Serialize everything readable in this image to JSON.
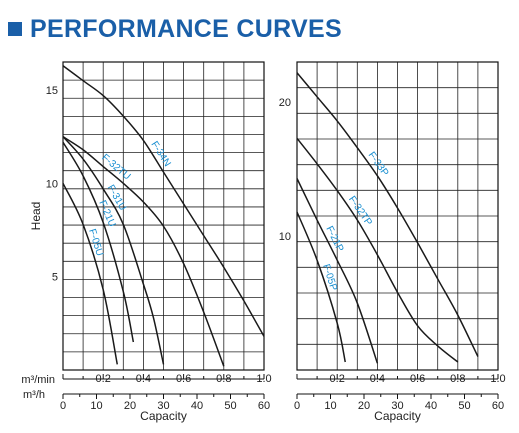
{
  "header": {
    "title": "PERFORMANCE CURVES",
    "accent_color": "#1a5fa8"
  },
  "chart_data": [
    {
      "type": "line",
      "ylabel": "Head",
      "xlabel": "Capacity",
      "x_axis_m3min_label": "m³/min",
      "x_axis_m3h_label": "m³/h",
      "ylim": [
        0,
        16.5
      ],
      "xlim_m3min": [
        0,
        1.0
      ],
      "xlim_m3h": [
        0,
        60
      ],
      "y_ticks": [
        "5",
        "10",
        "15"
      ],
      "x_ticks_m3min": [
        "0.2",
        "0.4",
        "0.6",
        "0.8",
        "1.0"
      ],
      "x_ticks_m3h": [
        "0",
        "10",
        "20",
        "30",
        "40",
        "50",
        "60"
      ],
      "grid": true,
      "curve_color": "#1a1a1a",
      "label_color": "#1a8fd1",
      "series": [
        {
          "name": "F-34N",
          "x": [
            0,
            0.1,
            0.2,
            0.3,
            0.4,
            0.5,
            0.6,
            0.7,
            0.8,
            0.9,
            1.0
          ],
          "y": [
            16.3,
            15.5,
            14.7,
            13.6,
            12.3,
            10.6,
            8.9,
            7.2,
            5.5,
            3.7,
            1.8
          ]
        },
        {
          "name": "F-32TU",
          "x": [
            0,
            0.1,
            0.2,
            0.3,
            0.4,
            0.5,
            0.6,
            0.7,
            0.8
          ],
          "y": [
            12.5,
            11.8,
            10.9,
            10.0,
            9.0,
            7.7,
            5.7,
            3.1,
            0.2
          ]
        },
        {
          "name": "F-31U",
          "x": [
            0,
            0.1,
            0.2,
            0.3,
            0.4,
            0.45,
            0.5
          ],
          "y": [
            12.5,
            11.3,
            9.7,
            7.8,
            4.6,
            2.8,
            0.3
          ]
        },
        {
          "name": "F-21U",
          "x": [
            0,
            0.1,
            0.2,
            0.3,
            0.35
          ],
          "y": [
            12.2,
            10.4,
            7.9,
            4.2,
            1.5
          ]
        },
        {
          "name": "F-05U",
          "x": [
            0,
            0.1,
            0.2,
            0.27
          ],
          "y": [
            10.0,
            7.8,
            4.3,
            0.3
          ]
        }
      ]
    },
    {
      "type": "line",
      "xlabel": "Capacity",
      "ylim": [
        0,
        23
      ],
      "xlim_m3min": [
        0,
        1.0
      ],
      "xlim_m3h": [
        0,
        60
      ],
      "y_ticks": [
        "10",
        "20"
      ],
      "x_ticks_m3min": [
        "0.2",
        "0.4",
        "0.6",
        "0.8",
        "1.0"
      ],
      "x_ticks_m3h": [
        "0",
        "10",
        "20",
        "30",
        "40",
        "50",
        "60"
      ],
      "grid": true,
      "curve_color": "#1a1a1a",
      "label_color": "#1a8fd1",
      "series": [
        {
          "name": "F-33P",
          "x": [
            0,
            0.1,
            0.2,
            0.3,
            0.4,
            0.5,
            0.6,
            0.7,
            0.8,
            0.9
          ],
          "y": [
            22.2,
            20.4,
            18.6,
            16.6,
            14.5,
            12.1,
            9.5,
            6.8,
            4.1,
            1.0
          ]
        },
        {
          "name": "F-32TP",
          "x": [
            0,
            0.1,
            0.2,
            0.3,
            0.4,
            0.5,
            0.6,
            0.7,
            0.8
          ],
          "y": [
            17.3,
            15.4,
            13.4,
            11.2,
            8.6,
            5.8,
            3.3,
            1.8,
            0.6
          ]
        },
        {
          "name": "F-21P",
          "x": [
            0,
            0.1,
            0.2,
            0.3,
            0.4
          ],
          "y": [
            14.3,
            11.2,
            8.2,
            5.0,
            0.5
          ]
        },
        {
          "name": "F-05P",
          "x": [
            0,
            0.1,
            0.2,
            0.24
          ],
          "y": [
            11.8,
            8.2,
            3.5,
            0.6
          ]
        }
      ]
    }
  ]
}
